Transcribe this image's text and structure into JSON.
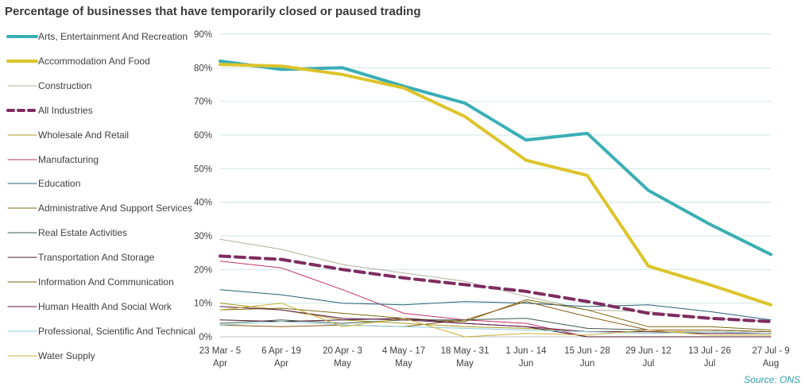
{
  "title": "Percentage of businesses that have temporarily closed or paused trading",
  "source": "Source: ONS",
  "chart_data": {
    "type": "line",
    "title": "Percentage of businesses that have temporarily closed or paused trading",
    "x": [
      [
        "23 Mar - 5",
        "Apr"
      ],
      [
        "6 Apr - 19",
        "Apr"
      ],
      [
        "20 Apr - 3",
        "May"
      ],
      [
        "4 May - 17",
        "May"
      ],
      [
        "18 May - 31",
        "May"
      ],
      [
        "1 Jun - 14",
        "Jun"
      ],
      [
        "15 Jun - 28",
        "Jun"
      ],
      [
        "29 Jun - 12",
        "Jul"
      ],
      [
        "13 Jul - 26",
        "Jul"
      ],
      [
        "27 Jul - 9",
        "Aug"
      ]
    ],
    "yticks": [
      "0%",
      "10%",
      "20%",
      "30%",
      "40%",
      "50%",
      "60%",
      "70%",
      "80%",
      "90%"
    ],
    "ylim": [
      0,
      90
    ],
    "grid": true,
    "legend_position": "left",
    "series": [
      {
        "name": "Arts, Entertainment And Recreation",
        "color": "#3aaeb5",
        "style": "thick",
        "values": [
          82,
          79.5,
          80,
          74.5,
          69.5,
          58.5,
          60.5,
          43.5,
          33.5,
          24.5
        ]
      },
      {
        "name": "Accommodation And Food",
        "color": "#dcc42a",
        "style": "thick",
        "values": [
          81,
          80.5,
          78,
          74,
          65.5,
          52.5,
          48,
          21,
          15.5,
          9.5
        ]
      },
      {
        "name": "Construction",
        "color": "#b2b09c",
        "style": "thin",
        "values": [
          29,
          26,
          21.5,
          19,
          16.5,
          12,
          8,
          7.5,
          5.5,
          4.5
        ]
      },
      {
        "name": "All Industries",
        "color": "#7e2c5f",
        "style": "dashed",
        "values": [
          24,
          23,
          20,
          17.5,
          15.5,
          13.5,
          10.5,
          7,
          5.5,
          4.5
        ]
      },
      {
        "name": "Wholesale And Retail",
        "color": "#a89a20",
        "style": "thin",
        "values": [
          10,
          8,
          5,
          4,
          3,
          2.5,
          1.5,
          1.5,
          1.5,
          1
        ]
      },
      {
        "name": "Manufacturing",
        "color": "#c0336b",
        "style": "thin",
        "values": [
          22.5,
          20.5,
          14,
          7,
          5,
          4,
          0,
          0,
          0,
          0
        ]
      },
      {
        "name": "Education",
        "color": "#27607a",
        "style": "thin",
        "values": [
          14,
          12.5,
          10,
          9.5,
          10.5,
          10,
          9,
          9.5,
          7.5,
          5
        ]
      },
      {
        "name": "Administrative And Support Services",
        "color": "#7a6a12",
        "style": "thin",
        "values": [
          8,
          8.5,
          7,
          5.5,
          4.5,
          11,
          8,
          3,
          3,
          2
        ]
      },
      {
        "name": "Real Estate Activities",
        "color": "#3f5b4a",
        "style": "thin",
        "values": [
          4,
          5,
          4,
          5,
          5,
          5.5,
          2.5,
          2,
          2,
          1.5
        ]
      },
      {
        "name": "Transportation And Storage",
        "color": "#4a1836",
        "style": "thin",
        "values": [
          5,
          4.5,
          5,
          5.5,
          4,
          3,
          0,
          0,
          0,
          0
        ]
      },
      {
        "name": "Information And Communication",
        "color": "#8a5a14",
        "style": "thin",
        "values": [
          3.5,
          3,
          3.5,
          3,
          5,
          10.5,
          6,
          2,
          2,
          1.5
        ]
      },
      {
        "name": "Human Health And Social Work",
        "color": "#5c1a4c",
        "style": "thin",
        "values": [
          9,
          8,
          5.5,
          5,
          4,
          3,
          1.5,
          1.5,
          1,
          1
        ]
      },
      {
        "name": "Professional, Scientific And Technical",
        "color": "#8ccbd6",
        "style": "thin",
        "values": [
          3.5,
          4.5,
          3.5,
          3,
          2.5,
          2,
          1.5,
          1,
          1.5,
          1
        ]
      },
      {
        "name": "Water Supply",
        "color": "#c9b038",
        "style": "thin",
        "values": [
          8,
          10,
          3,
          5.5,
          0,
          1,
          0.5,
          2,
          0.5,
          0.5
        ]
      }
    ]
  }
}
